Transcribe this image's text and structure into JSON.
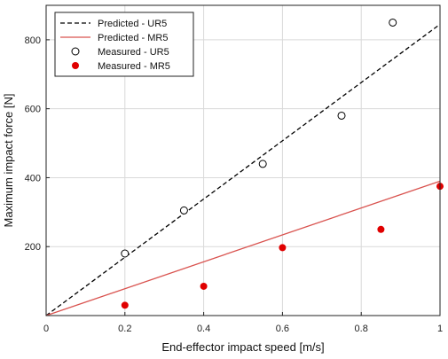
{
  "chart_data": {
    "type": "scatter",
    "title": "",
    "xlabel": "End-effector impact speed [m/s]",
    "ylabel": "Maximum impact force [N]",
    "xlim": [
      0,
      1
    ],
    "ylim": [
      0,
      900
    ],
    "x_ticks": [
      0,
      0.2,
      0.4,
      0.6,
      0.8,
      1
    ],
    "x_tick_labels": [
      "0",
      "0.2",
      "0.4",
      "0.6",
      "0.8",
      "1"
    ],
    "y_ticks": [
      200,
      400,
      600,
      800
    ],
    "y_tick_labels": [
      "200",
      "400",
      "600",
      "800"
    ],
    "grid": true,
    "legend_position": "top-left",
    "series": [
      {
        "name": "Predicted - UR5",
        "kind": "line",
        "style": "dashed",
        "color": "#000000",
        "x": [
          0,
          1
        ],
        "y": [
          0,
          845
        ]
      },
      {
        "name": "Predicted - MR5",
        "kind": "line",
        "style": "solid",
        "color": "#d9534f",
        "x": [
          0,
          1
        ],
        "y": [
          0,
          390
        ]
      },
      {
        "name": "Measured - UR5",
        "kind": "points",
        "marker": "open-circle",
        "color": "#000000",
        "x": [
          0.2,
          0.35,
          0.55,
          0.75,
          0.88
        ],
        "y": [
          180,
          305,
          440,
          580,
          850
        ]
      },
      {
        "name": "Measured - MR5",
        "kind": "points",
        "marker": "filled-circle",
        "color": "#e00000",
        "x": [
          0.2,
          0.4,
          0.6,
          0.85,
          1.0
        ],
        "y": [
          30,
          85,
          197,
          250,
          375
        ]
      }
    ]
  }
}
